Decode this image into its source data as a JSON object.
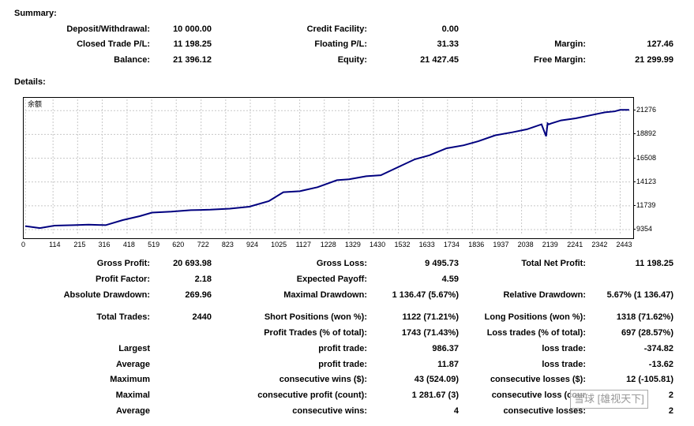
{
  "summary": {
    "heading": "Summary:",
    "rows": [
      [
        {
          "label": "Deposit/Withdrawal:",
          "value": "10 000.00"
        },
        {
          "label": "Credit Facility:",
          "value": "0.00"
        },
        {
          "label": "",
          "value": ""
        }
      ],
      [
        {
          "label": "Closed Trade P/L:",
          "value": "11 198.25"
        },
        {
          "label": "Floating P/L:",
          "value": "31.33"
        },
        {
          "label": "Margin:",
          "value": "127.46"
        }
      ],
      [
        {
          "label": "Balance:",
          "value": "21 396.12"
        },
        {
          "label": "Equity:",
          "value": "21 427.45"
        },
        {
          "label": "Free Margin:",
          "value": "21 299.99"
        }
      ]
    ]
  },
  "details": {
    "heading": "Details:"
  },
  "chart_data": {
    "type": "line",
    "title": "余额",
    "x_ticks": [
      0,
      114,
      215,
      316,
      418,
      519,
      620,
      722,
      823,
      924,
      1025,
      1127,
      1228,
      1329,
      1430,
      1532,
      1633,
      1734,
      1836,
      1937,
      2038,
      2139,
      2241,
      2342,
      2443
    ],
    "y_ticks": [
      9354,
      11739,
      14123,
      16508,
      18892,
      21276
    ],
    "xlim": [
      0,
      2490
    ],
    "ylim": [
      8800,
      22400
    ],
    "grid": true,
    "color": "#00007f",
    "series": [
      {
        "x": [
          0,
          60,
          120,
          200,
          260,
          330,
          400,
          470,
          520,
          600,
          680,
          760,
          840,
          920,
          1000,
          1060,
          1127,
          1200,
          1280,
          1330,
          1400,
          1460,
          1530,
          1600,
          1660,
          1730,
          1800,
          1860,
          1930,
          2000,
          2060,
          2120,
          2139,
          2145,
          2150,
          2160,
          2200,
          2260,
          2320,
          2380,
          2420,
          2443,
          2480
        ],
        "y": [
          9700,
          9500,
          9750,
          9800,
          9850,
          9800,
          10300,
          10700,
          11050,
          11150,
          11300,
          11350,
          11450,
          11650,
          12200,
          13100,
          13200,
          13600,
          14300,
          14400,
          14700,
          14800,
          15600,
          16400,
          16800,
          17500,
          17800,
          18200,
          18800,
          19100,
          19400,
          19900,
          18700,
          20000,
          19900,
          20000,
          20300,
          20500,
          20800,
          21100,
          21200,
          21350,
          21350
        ]
      }
    ]
  },
  "stats": {
    "col1": [
      {
        "label": "Gross Profit:",
        "value": "20 693.98"
      },
      {
        "label": "Profit Factor:",
        "value": "2.18"
      },
      {
        "label": "Absolute Drawdown:",
        "value": "269.96"
      },
      {
        "label": "Total Trades:",
        "value": "2440"
      },
      {
        "label": "",
        "value": ""
      },
      {
        "label": "Largest",
        "value": ""
      },
      {
        "label": "Average",
        "value": ""
      },
      {
        "label": "Maximum",
        "value": ""
      },
      {
        "label": "Maximal",
        "value": ""
      },
      {
        "label": "Average",
        "value": ""
      }
    ],
    "col2": [
      {
        "label": "Gross Loss:",
        "value": "9 495.73"
      },
      {
        "label": "Expected Payoff:",
        "value": "4.59"
      },
      {
        "label": "Maximal Drawdown:",
        "value": "1 136.47 (5.67%)"
      },
      {
        "label": "Short Positions (won %):",
        "value": "1122 (71.21%)"
      },
      {
        "label": "Profit Trades (% of total):",
        "value": "1743 (71.43%)"
      },
      {
        "label": "profit trade:",
        "value": "986.37"
      },
      {
        "label": "profit trade:",
        "value": "11.87"
      },
      {
        "label": "consecutive wins ($):",
        "value": "43 (524.09)"
      },
      {
        "label": "consecutive profit (count):",
        "value": "1 281.67 (3)"
      },
      {
        "label": "consecutive wins:",
        "value": "4"
      }
    ],
    "col3": [
      {
        "label": "Total Net Profit:",
        "value": "11 198.25"
      },
      {
        "label": "",
        "value": ""
      },
      {
        "label": "Relative Drawdown:",
        "value": "5.67% (1 136.47)"
      },
      {
        "label": "Long Positions (won %):",
        "value": "1318 (71.62%)"
      },
      {
        "label": "Loss trades (% of total):",
        "value": "697 (28.57%)"
      },
      {
        "label": "loss trade:",
        "value": "-374.82"
      },
      {
        "label": "loss trade:",
        "value": "-13.62"
      },
      {
        "label": "consecutive losses ($):",
        "value": "12 (-105.81)"
      },
      {
        "label": "consecutive loss (cour",
        "value": "2"
      },
      {
        "label": "consecutive losses:",
        "value": "2"
      }
    ]
  },
  "watermark": "雪球 [雄视天下]"
}
